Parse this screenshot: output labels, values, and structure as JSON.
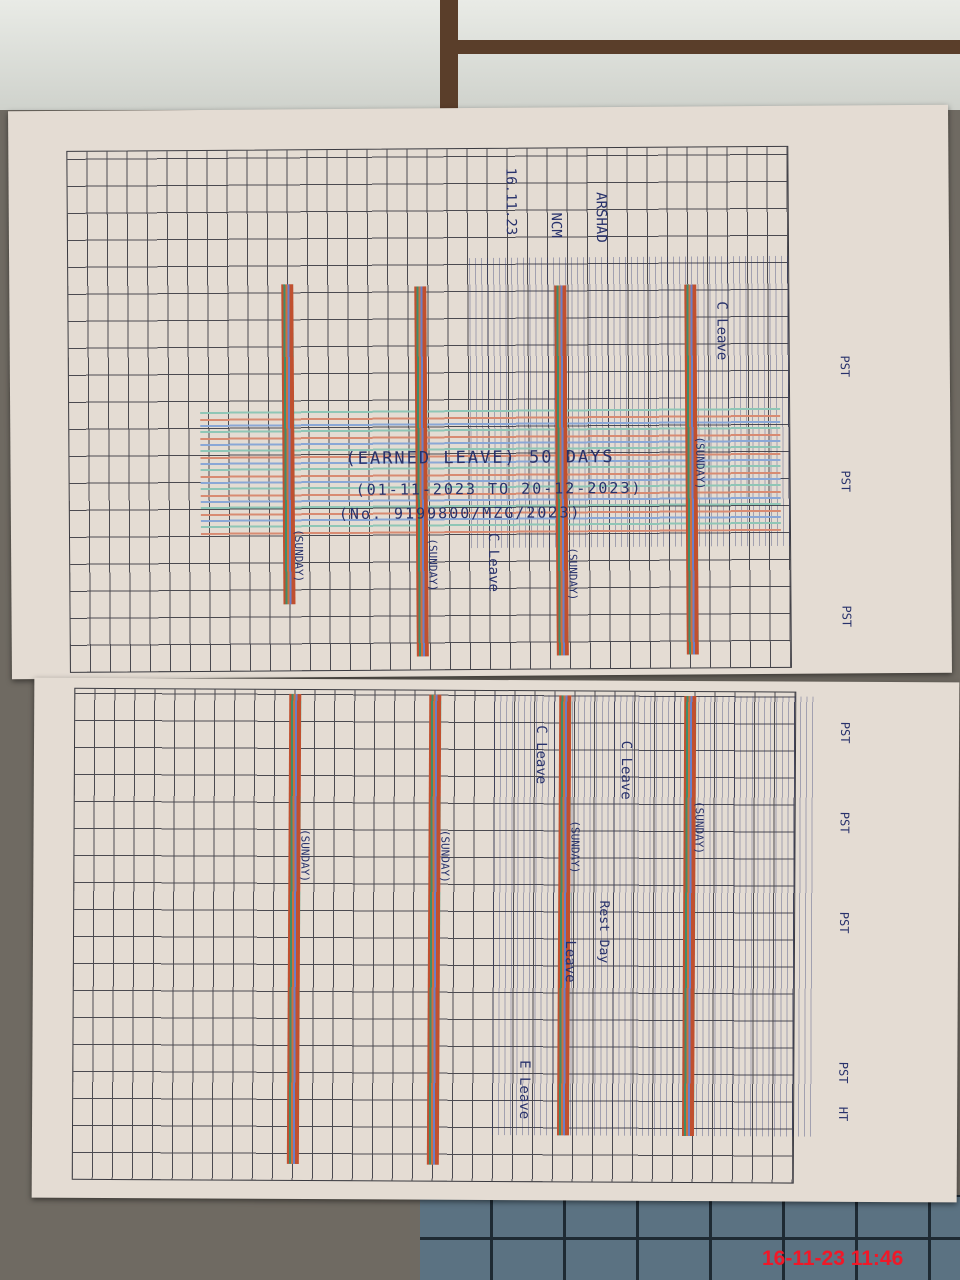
{
  "top_page": {
    "leave_note": {
      "line1": "(EARNED LEAVE)  50 DAYS",
      "line2": "(01-11-2023 TO 20-12-2023)",
      "line3": "(No. 9199800/MZG/2023)"
    },
    "sunday_labels": [
      "(SUNDAY)",
      "(SUNDAY)",
      "(SUNDAY)",
      "(SUNDAY)"
    ],
    "designations": [
      "PST",
      "PST",
      "PST"
    ],
    "marks": [
      "C Leave",
      "C Leave",
      "ARSHAD",
      "NCM",
      "16.11.23"
    ]
  },
  "bottom_page": {
    "sunday_labels": [
      "(SUNDAY)",
      "(SUNDAY)",
      "(SUNDAY)",
      "(SUNDAY)"
    ],
    "designations": [
      "PST",
      "PST",
      "PST",
      "PST",
      "HT"
    ],
    "marks": [
      "C Leave",
      "C Leave",
      "E Leave",
      "Leave",
      "Rest Day"
    ]
  },
  "timestamp": "16-11-23 11:46"
}
